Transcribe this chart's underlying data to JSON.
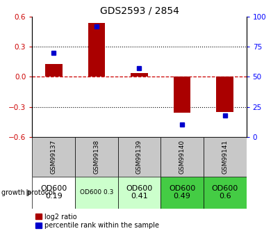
{
  "title": "GDS2593 / 2854",
  "samples": [
    "GSM99137",
    "GSM99138",
    "GSM99139",
    "GSM99140",
    "GSM99141"
  ],
  "log2_ratios": [
    0.13,
    0.54,
    0.04,
    -0.36,
    -0.35
  ],
  "percentile_ranks": [
    70,
    92,
    57,
    10,
    18
  ],
  "ylim_left": [
    -0.6,
    0.6
  ],
  "ylim_right": [
    0,
    100
  ],
  "yticks_left": [
    -0.6,
    -0.3,
    0.0,
    0.3,
    0.6
  ],
  "yticks_right": [
    0,
    25,
    50,
    75,
    100
  ],
  "bar_color": "#aa0000",
  "dot_color": "#0000cc",
  "zero_line_color": "#cc0000",
  "bg_label_row": "#c8c8c8",
  "growth_protocol_labels": [
    "OD600\n0.19",
    "OD600 0.3",
    "OD600\n0.41",
    "OD600\n0.49",
    "OD600\n0.6"
  ],
  "growth_bg_colors": [
    "#ffffff",
    "#ccffcc",
    "#ccffcc",
    "#44cc44",
    "#44cc44"
  ],
  "growth_font_sizes": [
    8,
    6.5,
    8,
    8,
    8
  ],
  "bar_width": 0.4
}
